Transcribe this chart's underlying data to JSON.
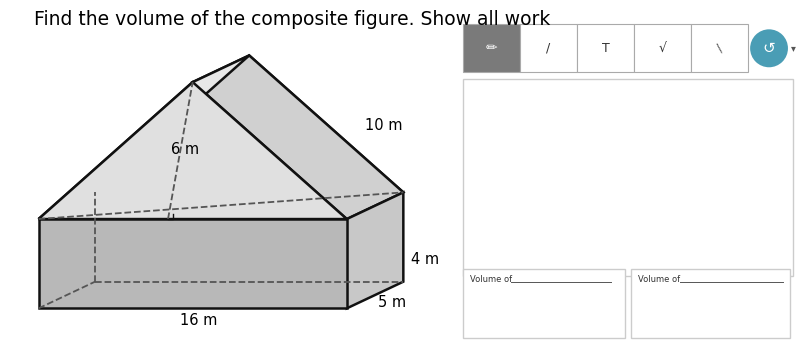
{
  "title": "Find the volume of the composite figure. Show all work",
  "title_fontsize": 13.5,
  "bg_color": "#ffffff",
  "label_10m": "10 m",
  "label_6m": "6 m",
  "label_4m": "4 m",
  "label_5m": "5 m",
  "label_16m": "16 m",
  "volume_label": "Volume of",
  "shape_face_top_tri": "#e0e0e0",
  "shape_face_right_slant": "#d0d0d0",
  "shape_face_left_slant": "#e8e8e8",
  "shape_face_right_box": "#c8c8c8",
  "shape_face_front_box": "#b8b8b8",
  "shape_face_back_tri": "#d8d8d8",
  "shape_face_top_box": "#e4e4e4",
  "shape_stroke": "#111111",
  "dashed_color": "#555555",
  "toolbar_pencil_bg": "#808080",
  "toolbar_btn_bg": "#ffffff",
  "toolbar_border": "#cccccc",
  "teal_circle": "#4a9db5",
  "teal_arrow": "#ffffff"
}
